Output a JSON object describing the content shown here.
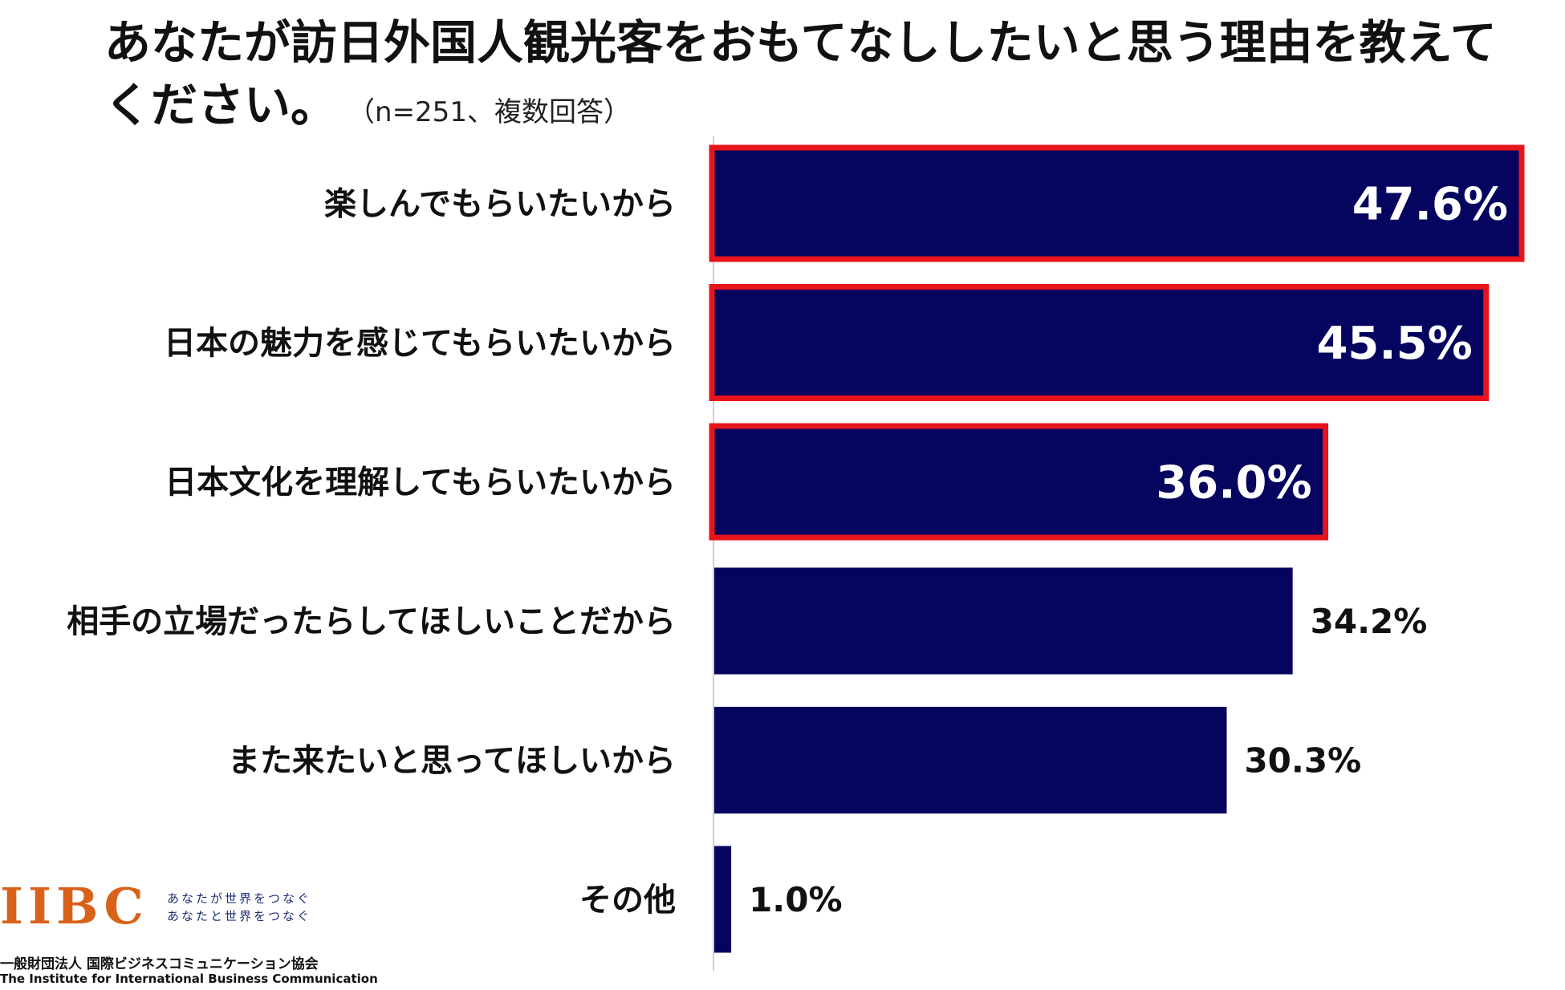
{
  "title": {
    "main": "あなたが訪日外国人観光客をおもてなししたいと思う理由を教えてください。",
    "note": "（n=251、複数回答）"
  },
  "colors": {
    "bar": "#05055f",
    "highlight_border": "#e8141c",
    "axis": "#cfcfcf",
    "logo_letters": "#d9621a",
    "logo_dot": "#d9621a"
  },
  "chart_data": {
    "type": "bar",
    "orientation": "horizontal",
    "categories": [
      "楽しんでもらいたいから",
      "日本の魅力を感じてもらいたいから",
      "日本文化を理解してもらいたいから",
      "相手の立場だったらしてほしいことだから",
      "また来たいと思ってほしいから",
      "その他"
    ],
    "values": [
      47.6,
      45.5,
      36.0,
      34.2,
      30.3,
      1.0
    ],
    "value_labels": [
      "47.6%",
      "45.5%",
      "36.0%",
      "34.2%",
      "30.3%",
      "1.0%"
    ],
    "highlighted": [
      true,
      true,
      true,
      false,
      false,
      false
    ],
    "xlim": [
      0,
      47.6
    ],
    "unit": "%",
    "grid": false,
    "legend": "none"
  },
  "logo": {
    "mark": "IIBC",
    "tagline_1": "あなたが世界をつなぐ",
    "tagline_2": "あなたと世界をつなぐ",
    "org_name": "一般財団法人 国際ビジネスコミュニケーション協会",
    "english_name": "The Institute for International Business Communication"
  }
}
